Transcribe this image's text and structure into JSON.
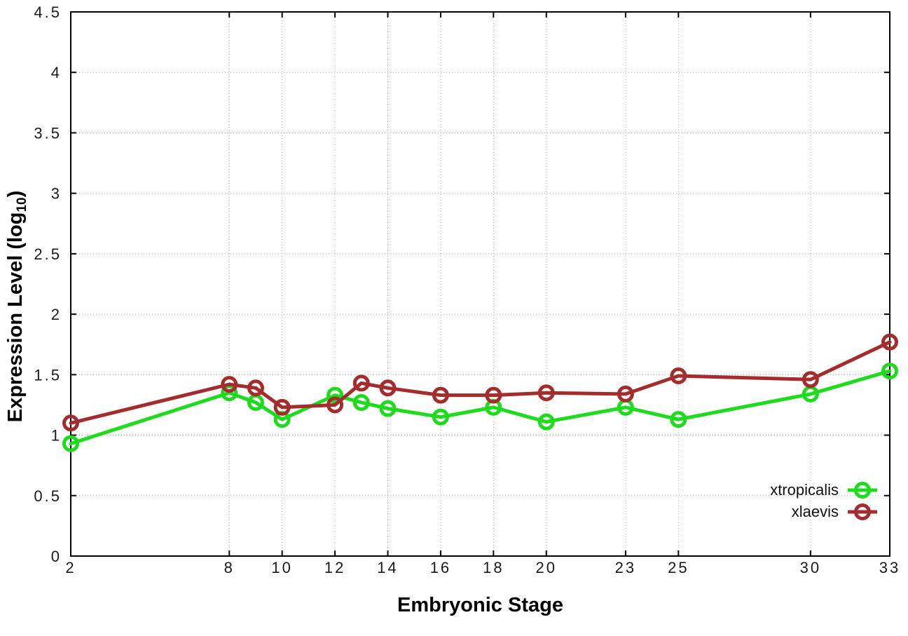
{
  "figure": {
    "background": "#ffffff",
    "border_color": "#000000",
    "grid_color": "#b8b8b8",
    "tick_label_color": "#1a1a1a"
  },
  "chart_data": {
    "type": "line",
    "title": "",
    "xlabel": "Embryonic Stage",
    "ylabel": {
      "prefix": "Expression Level (log",
      "subscript": "10",
      "suffix": ")"
    },
    "x": [
      2,
      8,
      9,
      10,
      12,
      13,
      14,
      16,
      18,
      20,
      23,
      25,
      30,
      33
    ],
    "series": [
      {
        "name": "xtropicalis",
        "color": "#1cdc1c",
        "values": [
          0.93,
          1.35,
          1.27,
          1.13,
          1.33,
          1.27,
          1.22,
          1.15,
          1.23,
          1.11,
          1.23,
          1.13,
          1.34,
          1.53
        ]
      },
      {
        "name": "xlaevis",
        "color": "#a42c2c",
        "values": [
          1.1,
          1.42,
          1.39,
          1.23,
          1.25,
          1.43,
          1.39,
          1.33,
          1.33,
          1.35,
          1.34,
          1.49,
          1.46,
          1.77
        ]
      }
    ],
    "xlim": [
      2,
      33
    ],
    "ylim": [
      0,
      4.5
    ],
    "xticks": [
      2,
      8,
      10,
      12,
      14,
      16,
      18,
      20,
      23,
      25,
      30,
      33
    ],
    "xtick_labels": [
      "2",
      "8",
      "10",
      "12",
      "14",
      "16",
      "18",
      "20",
      "23",
      "25",
      "30",
      "33"
    ],
    "yticks": [
      0,
      0.5,
      1,
      1.5,
      2,
      2.5,
      3,
      3.5,
      4,
      4.5
    ],
    "ytick_labels": [
      "0",
      "0.5",
      "1",
      "1.5",
      "2",
      "2.5",
      "3",
      "3.5",
      "4",
      "4.5"
    ],
    "grid": true,
    "legend_position": "inside-bottom-right",
    "marker": "open-circle"
  }
}
